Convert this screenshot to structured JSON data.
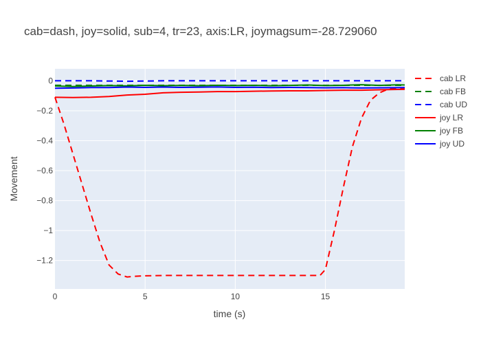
{
  "chart_data": {
    "type": "line",
    "title": "cab=dash, joy=solid, sub=4, tr=23, axis:LR, joymagsum=-28.729060",
    "xlabel": "time (s)",
    "ylabel": "Movement",
    "xlim": [
      0,
      19.4
    ],
    "ylim": [
      -1.39,
      0.08
    ],
    "x_ticks": [
      0,
      5,
      10,
      15
    ],
    "x_tick_labels": [
      "0",
      "5",
      "10",
      "15"
    ],
    "y_ticks": [
      0,
      -0.2,
      -0.4,
      -0.6,
      -0.8,
      -1,
      -1.2
    ],
    "y_tick_labels": [
      "0",
      "−0.2",
      "−0.4",
      "−0.6",
      "−0.8",
      "−1",
      "−1.2"
    ],
    "grid": true,
    "legend_position": "right",
    "series": [
      {
        "name": "cab LR",
        "color": "#ff0000",
        "dash": "dash",
        "x": [
          0,
          0.5,
          1,
          1.5,
          2,
          2.5,
          3,
          3.5,
          4,
          4.5,
          5,
          6,
          7,
          8,
          9,
          10,
          11,
          12,
          13,
          14,
          14.7,
          15,
          15.5,
          16,
          16.5,
          17,
          17.5,
          18,
          18.5,
          19,
          19.4
        ],
        "y": [
          -0.11,
          -0.29,
          -0.49,
          -0.69,
          -0.89,
          -1.08,
          -1.23,
          -1.29,
          -1.31,
          -1.305,
          -1.302,
          -1.3,
          -1.3,
          -1.3,
          -1.3,
          -1.3,
          -1.3,
          -1.3,
          -1.3,
          -1.3,
          -1.3,
          -1.26,
          -1.0,
          -0.71,
          -0.44,
          -0.25,
          -0.13,
          -0.08,
          -0.055,
          -0.05,
          -0.05
        ]
      },
      {
        "name": "cab FB",
        "color": "#008000",
        "dash": "dash",
        "x": [
          0,
          2,
          4,
          6,
          8,
          10,
          12,
          14,
          16,
          18,
          19.4
        ],
        "y": [
          -0.03,
          -0.03,
          -0.03,
          -0.03,
          -0.03,
          -0.03,
          -0.03,
          -0.03,
          -0.03,
          -0.03,
          -0.03
        ]
      },
      {
        "name": "cab UD",
        "color": "#0000ff",
        "dash": "dash",
        "x": [
          0,
          2,
          4,
          6,
          8,
          10,
          12,
          14,
          16,
          18,
          19.4
        ],
        "y": [
          0.0,
          0.0,
          -0.003,
          0.0,
          0.0,
          0.0,
          0.0,
          0.0,
          0.0,
          0.0,
          0.0
        ]
      },
      {
        "name": "joy LR",
        "color": "#ff0000",
        "dash": "solid",
        "x": [
          0,
          1,
          2,
          3,
          4,
          5,
          6,
          7,
          8,
          9,
          10,
          11,
          12,
          13,
          14,
          15,
          16,
          17,
          18,
          19,
          19.4
        ],
        "y": [
          -0.11,
          -0.112,
          -0.11,
          -0.105,
          -0.095,
          -0.09,
          -0.08,
          -0.077,
          -0.075,
          -0.072,
          -0.072,
          -0.07,
          -0.068,
          -0.067,
          -0.067,
          -0.065,
          -0.063,
          -0.063,
          -0.06,
          -0.058,
          -0.057
        ]
      },
      {
        "name": "joy FB",
        "color": "#008000",
        "dash": "solid",
        "x": [
          0,
          1,
          2,
          3,
          4,
          5,
          6,
          7,
          8,
          9,
          10,
          11,
          12,
          13,
          14,
          15,
          16,
          17,
          18,
          19,
          19.4
        ],
        "y": [
          -0.035,
          -0.038,
          -0.035,
          -0.032,
          -0.034,
          -0.03,
          -0.033,
          -0.031,
          -0.033,
          -0.03,
          -0.032,
          -0.03,
          -0.033,
          -0.031,
          -0.028,
          -0.032,
          -0.03,
          -0.026,
          -0.031,
          -0.027,
          -0.028
        ]
      },
      {
        "name": "joy UD",
        "color": "#0000ff",
        "dash": "solid",
        "x": [
          0,
          1,
          2,
          3,
          4,
          5,
          6,
          7,
          8,
          9,
          10,
          11,
          12,
          13,
          14,
          15,
          16,
          17,
          18,
          19,
          19.4
        ],
        "y": [
          -0.05,
          -0.048,
          -0.045,
          -0.045,
          -0.042,
          -0.044,
          -0.042,
          -0.044,
          -0.043,
          -0.041,
          -0.044,
          -0.043,
          -0.045,
          -0.044,
          -0.045,
          -0.047,
          -0.046,
          -0.048,
          -0.047,
          -0.046,
          -0.045
        ]
      }
    ]
  }
}
